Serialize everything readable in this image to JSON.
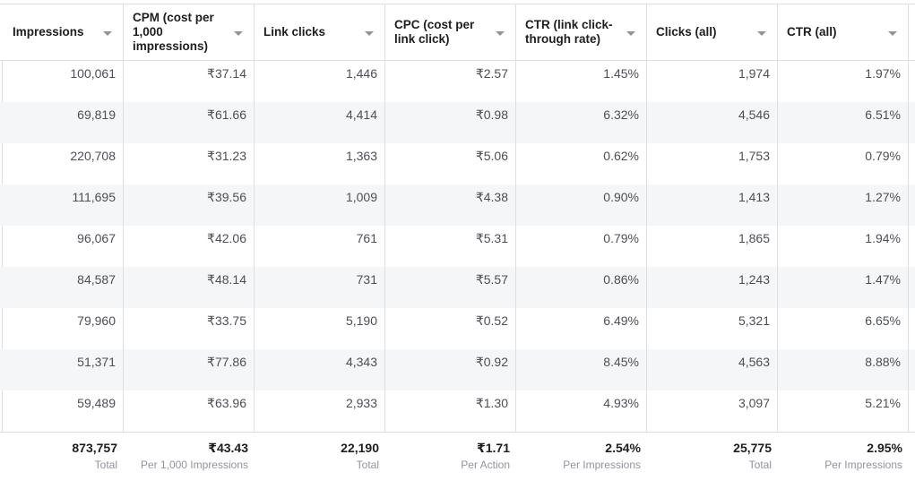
{
  "columns": [
    {
      "label": "Impressions"
    },
    {
      "label": "CPM (cost per 1,000 impressions)"
    },
    {
      "label": "Link clicks"
    },
    {
      "label": "CPC (cost per link click)"
    },
    {
      "label": "CTR (link click-through rate)"
    },
    {
      "label": "Clicks (all)"
    },
    {
      "label": "CTR (all)"
    }
  ],
  "rows": [
    [
      "100,061",
      "₹37.14",
      "1,446",
      "₹2.57",
      "1.45%",
      "1,974",
      "1.97%"
    ],
    [
      "69,819",
      "₹61.66",
      "4,414",
      "₹0.98",
      "6.32%",
      "4,546",
      "6.51%"
    ],
    [
      "220,708",
      "₹31.23",
      "1,363",
      "₹5.06",
      "0.62%",
      "1,753",
      "0.79%"
    ],
    [
      "111,695",
      "₹39.56",
      "1,009",
      "₹4.38",
      "0.90%",
      "1,413",
      "1.27%"
    ],
    [
      "96,067",
      "₹42.06",
      "761",
      "₹5.31",
      "0.79%",
      "1,865",
      "1.94%"
    ],
    [
      "84,587",
      "₹48.14",
      "731",
      "₹5.57",
      "0.86%",
      "1,243",
      "1.47%"
    ],
    [
      "79,960",
      "₹33.75",
      "5,190",
      "₹0.52",
      "6.49%",
      "5,321",
      "6.65%"
    ],
    [
      "51,371",
      "₹77.86",
      "4,343",
      "₹0.92",
      "8.45%",
      "4,563",
      "8.88%"
    ],
    [
      "59,489",
      "₹63.96",
      "2,933",
      "₹1.30",
      "4.93%",
      "3,097",
      "5.21%"
    ]
  ],
  "totals": [
    {
      "value": "873,757",
      "sub": "Total"
    },
    {
      "value": "₹43.43",
      "sub": "Per 1,000 Impressions"
    },
    {
      "value": "22,190",
      "sub": "Total"
    },
    {
      "value": "₹1.71",
      "sub": "Per Action"
    },
    {
      "value": "2.54%",
      "sub": "Per Impressions"
    },
    {
      "value": "25,775",
      "sub": "Total"
    },
    {
      "value": "2.95%",
      "sub": "Per Impressions"
    }
  ],
  "colors": {
    "border": "#dddfe2",
    "row_shade": "#f5f6f7",
    "header_text": "#1c1e21",
    "cell_text": "#4b4f56",
    "sub_text": "#90949c"
  }
}
